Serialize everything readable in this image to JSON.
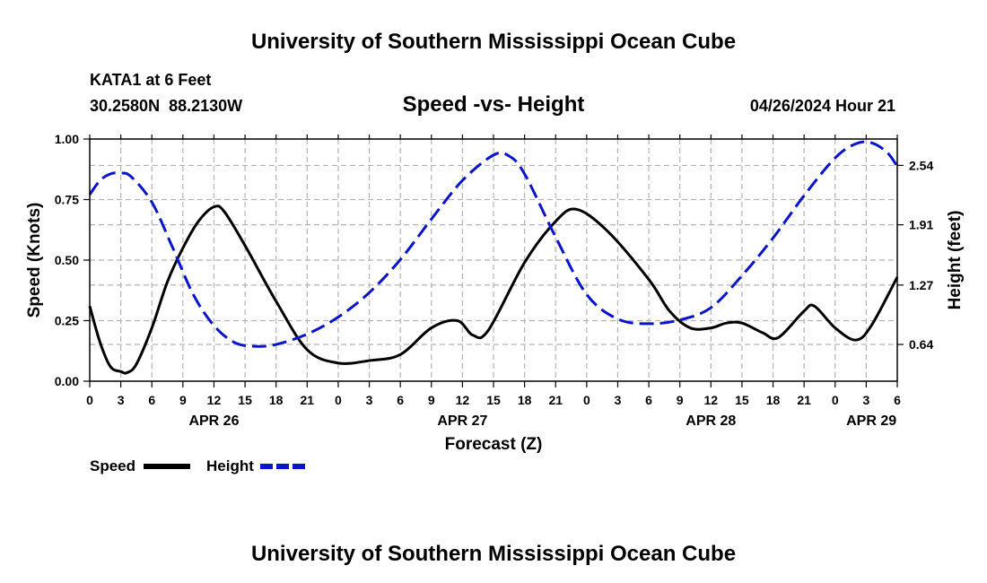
{
  "header": {
    "title": "University of Southern Mississippi Ocean Cube",
    "station": "KATA1 at 6 Feet",
    "coords": "30.2580N  88.2130W",
    "subtitle": "Speed -vs- Height",
    "datetime": "04/26/2024 Hour 21"
  },
  "footer": {
    "title": "University of Southern Mississippi Ocean Cube"
  },
  "colors": {
    "speed": "#000000",
    "height": "#0a14c8",
    "grid": "#b4b4b4"
  },
  "chart_data": {
    "type": "line",
    "title": "Speed -vs- Height",
    "xlabel": "Forecast (Z)",
    "ylabel": "Speed (Knots)",
    "y2label": "Height (feet)",
    "x_range_hours": [
      0,
      78
    ],
    "ylim": [
      0,
      1.0
    ],
    "y2lim": [
      0.25,
      2.82
    ],
    "x_ticks": [
      {
        "h": 0,
        "label": "0"
      },
      {
        "h": 3,
        "label": "3"
      },
      {
        "h": 6,
        "label": "6"
      },
      {
        "h": 9,
        "label": "9"
      },
      {
        "h": 12,
        "label": "12"
      },
      {
        "h": 15,
        "label": "15"
      },
      {
        "h": 18,
        "label": "18"
      },
      {
        "h": 21,
        "label": "21"
      },
      {
        "h": 24,
        "label": "0"
      },
      {
        "h": 27,
        "label": "3"
      },
      {
        "h": 30,
        "label": "6"
      },
      {
        "h": 33,
        "label": "9"
      },
      {
        "h": 36,
        "label": "12"
      },
      {
        "h": 39,
        "label": "15"
      },
      {
        "h": 42,
        "label": "18"
      },
      {
        "h": 45,
        "label": "21"
      },
      {
        "h": 48,
        "label": "0"
      },
      {
        "h": 51,
        "label": "3"
      },
      {
        "h": 54,
        "label": "6"
      },
      {
        "h": 57,
        "label": "9"
      },
      {
        "h": 60,
        "label": "12"
      },
      {
        "h": 63,
        "label": "15"
      },
      {
        "h": 66,
        "label": "18"
      },
      {
        "h": 69,
        "label": "21"
      },
      {
        "h": 72,
        "label": "0"
      },
      {
        "h": 75,
        "label": "3"
      },
      {
        "h": 78,
        "label": "6"
      }
    ],
    "date_labels": [
      {
        "h": 12,
        "label": "APR 26"
      },
      {
        "h": 36,
        "label": "APR 27"
      },
      {
        "h": 60,
        "label": "APR 28"
      },
      {
        "h": 75.5,
        "label": "APR 29"
      }
    ],
    "y_ticks": [
      {
        "v": 0.0,
        "label": "0.00"
      },
      {
        "v": 0.25,
        "label": "0.25"
      },
      {
        "v": 0.5,
        "label": "0.50"
      },
      {
        "v": 0.75,
        "label": "0.75"
      },
      {
        "v": 1.0,
        "label": "1.00"
      }
    ],
    "y2_ticks": [
      {
        "v": 0.64,
        "label": "0.64"
      },
      {
        "v": 1.27,
        "label": "1.27"
      },
      {
        "v": 1.91,
        "label": "1.91"
      },
      {
        "v": 2.54,
        "label": "2.54"
      }
    ],
    "series": [
      {
        "name": "Speed",
        "axis": "left",
        "style": "solid",
        "x": [
          0,
          1,
          2,
          3,
          3.6,
          4.5,
          6,
          7.5,
          9,
          10.5,
          12,
          13,
          15,
          18,
          21,
          24,
          27,
          30,
          33,
          35.5,
          37,
          38.5,
          42,
          45,
          47,
          50,
          54,
          56,
          58,
          60,
          61.5,
          63,
          65,
          66.5,
          69,
          70,
          72,
          74,
          75.5,
          78
        ],
        "values": [
          0.31,
          0.16,
          0.06,
          0.04,
          0.035,
          0.07,
          0.22,
          0.41,
          0.55,
          0.66,
          0.72,
          0.7,
          0.56,
          0.33,
          0.13,
          0.075,
          0.085,
          0.11,
          0.22,
          0.25,
          0.19,
          0.21,
          0.49,
          0.66,
          0.71,
          0.62,
          0.42,
          0.29,
          0.22,
          0.22,
          0.24,
          0.24,
          0.2,
          0.18,
          0.29,
          0.31,
          0.22,
          0.17,
          0.23,
          0.43
        ]
      },
      {
        "name": "Height",
        "axis": "right",
        "style": "dashed",
        "x": [
          0,
          1,
          2,
          3,
          4,
          6,
          8,
          10,
          12,
          14,
          16,
          18,
          21,
          24,
          27,
          30,
          33,
          36,
          39,
          40.5,
          42,
          45,
          48,
          51,
          54,
          57,
          60,
          63,
          66,
          69,
          72,
          74,
          75.5,
          77,
          78
        ],
        "values": [
          2.23,
          2.38,
          2.45,
          2.46,
          2.42,
          2.15,
          1.67,
          1.17,
          0.84,
          0.66,
          0.62,
          0.64,
          0.75,
          0.93,
          1.19,
          1.54,
          1.97,
          2.38,
          2.65,
          2.64,
          2.45,
          1.78,
          1.17,
          0.91,
          0.86,
          0.9,
          1.03,
          1.37,
          1.77,
          2.22,
          2.62,
          2.77,
          2.78,
          2.68,
          2.53
        ]
      }
    ],
    "legend": {
      "position": "bottom-left",
      "entries": [
        "Speed",
        "Height"
      ]
    }
  }
}
